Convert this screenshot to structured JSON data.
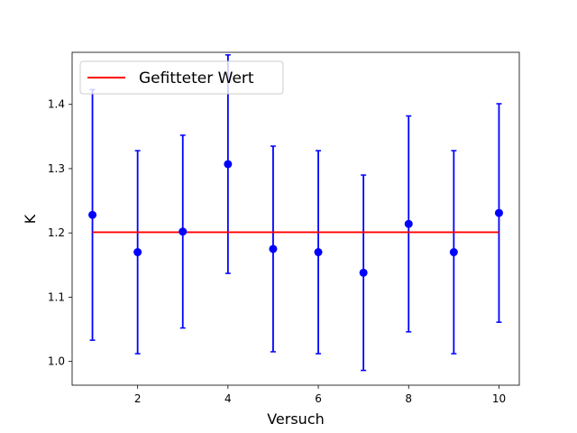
{
  "chart_data": {
    "type": "scatter",
    "xlabel": "Versuch",
    "ylabel": "K",
    "xlim": [
      0.55,
      10.45
    ],
    "ylim": [
      0.963,
      1.481
    ],
    "x_ticks": [
      2,
      4,
      6,
      8,
      10
    ],
    "y_ticks": [
      1.0,
      1.1,
      1.2,
      1.3,
      1.4
    ],
    "x_tick_labels": [
      "2",
      "4",
      "6",
      "8",
      "10"
    ],
    "y_tick_labels": [
      "1.0",
      "1.1",
      "1.2",
      "1.3",
      "1.4"
    ],
    "grid": false,
    "legend_position": "top-left",
    "colors": {
      "points": "#0000ff",
      "fit": "#ff0000"
    },
    "series": [
      {
        "kind": "errorbar",
        "x": [
          1,
          2,
          3,
          4,
          5,
          6,
          7,
          8,
          9,
          10
        ],
        "y": [
          1.228,
          1.17,
          1.202,
          1.307,
          1.175,
          1.17,
          1.138,
          1.214,
          1.17,
          1.231
        ],
        "yerr": [
          0.195,
          0.158,
          0.15,
          0.17,
          0.16,
          0.158,
          0.152,
          0.168,
          0.158,
          0.17
        ]
      },
      {
        "kind": "line",
        "name": "Gefitteter Wert",
        "x": [
          1,
          10
        ],
        "y": [
          1.201,
          1.201
        ]
      }
    ]
  }
}
